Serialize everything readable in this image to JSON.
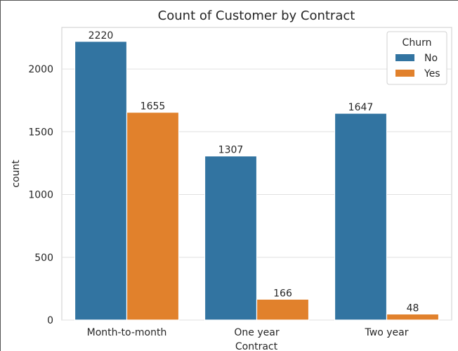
{
  "chart_data": {
    "type": "bar",
    "title": "Count of Customer by Contract",
    "xlabel": "Contract",
    "ylabel": "count",
    "categories": [
      "Month-to-month",
      "One year",
      "Two year"
    ],
    "series": [
      {
        "name": "No",
        "values": [
          2220,
          1307,
          1647
        ],
        "color": "#3274a1"
      },
      {
        "name": "Yes",
        "values": [
          1655,
          166,
          48
        ],
        "color": "#e1812c"
      }
    ],
    "ylim": [
      0,
      2331
    ],
    "yticks": [
      0,
      500,
      1000,
      1500,
      2000
    ],
    "data_labels": true,
    "grid": "horizontal",
    "legend": {
      "title": "Churn",
      "placement": "top-right"
    }
  }
}
